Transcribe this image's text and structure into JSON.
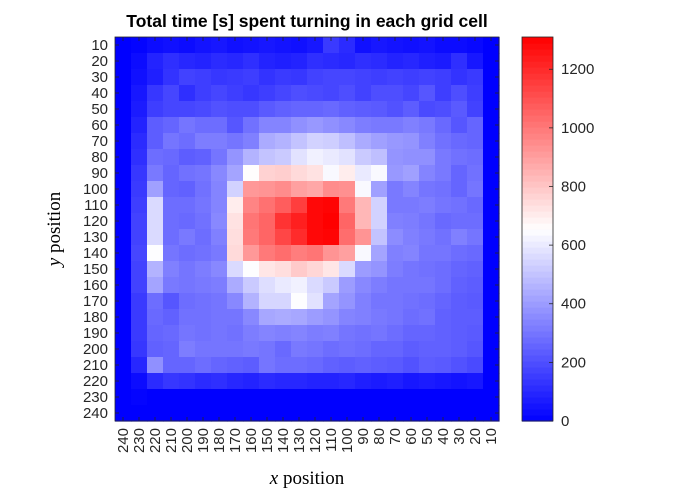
{
  "chart_data": {
    "type": "heatmap",
    "title": "Total time [s] spent turning in each grid cell",
    "xlabel_var": "x",
    "xlabel_rest": " position",
    "ylabel_var": "y",
    "ylabel_rest": " position",
    "x_ticks": [
      "240",
      "230",
      "220",
      "210",
      "200",
      "190",
      "180",
      "170",
      "160",
      "150",
      "140",
      "130",
      "120",
      "110",
      "100",
      "90",
      "80",
      "70",
      "60",
      "50",
      "40",
      "30",
      "20",
      "10"
    ],
    "y_ticks": [
      "10",
      "20",
      "30",
      "40",
      "50",
      "60",
      "70",
      "80",
      "90",
      "100",
      "110",
      "120",
      "130",
      "140",
      "150",
      "160",
      "170",
      "180",
      "190",
      "200",
      "210",
      "220",
      "230",
      "240"
    ],
    "colorbar": {
      "min": 0,
      "max": 1310,
      "ticks": [
        0,
        200,
        400,
        600,
        800,
        1000,
        1200
      ],
      "tick_labels": [
        "0",
        "200",
        "400",
        "600",
        "800",
        "1000",
        "1200"
      ],
      "colors": {
        "low": "#0000ff",
        "mid": "#ffffff",
        "high": "#ff0000"
      }
    },
    "values": [
      [
        0,
        10,
        30,
        40,
        30,
        50,
        60,
        40,
        50,
        60,
        50,
        40,
        60,
        150,
        110,
        40,
        60,
        50,
        40,
        50,
        30,
        30,
        20,
        0
      ],
      [
        0,
        30,
        90,
        120,
        100,
        90,
        110,
        100,
        120,
        90,
        80,
        90,
        120,
        110,
        100,
        120,
        110,
        90,
        100,
        80,
        70,
        120,
        60,
        0
      ],
      [
        0,
        40,
        80,
        130,
        170,
        160,
        140,
        150,
        160,
        130,
        150,
        140,
        170,
        180,
        180,
        170,
        160,
        170,
        160,
        170,
        160,
        130,
        150,
        0
      ],
      [
        0,
        60,
        140,
        180,
        120,
        160,
        180,
        160,
        140,
        160,
        180,
        200,
        190,
        180,
        200,
        170,
        200,
        200,
        180,
        220,
        160,
        200,
        160,
        0
      ],
      [
        0,
        70,
        160,
        180,
        180,
        190,
        210,
        200,
        200,
        230,
        250,
        260,
        260,
        270,
        250,
        240,
        230,
        210,
        240,
        190,
        200,
        230,
        170,
        0
      ],
      [
        0,
        90,
        240,
        260,
        300,
        280,
        280,
        220,
        290,
        340,
        340,
        370,
        390,
        370,
        350,
        320,
        310,
        310,
        330,
        310,
        270,
        220,
        260,
        0
      ],
      [
        0,
        110,
        240,
        300,
        280,
        320,
        320,
        300,
        330,
        440,
        460,
        500,
        540,
        530,
        490,
        440,
        410,
        390,
        380,
        330,
        290,
        270,
        260,
        0
      ],
      [
        0,
        120,
        280,
        270,
        240,
        250,
        300,
        380,
        460,
        500,
        520,
        580,
        620,
        600,
        580,
        520,
        490,
        380,
        370,
        370,
        310,
        290,
        280,
        0
      ],
      [
        0,
        140,
        310,
        260,
        290,
        300,
        350,
        420,
        660,
        770,
        780,
        750,
        730,
        640,
        700,
        600,
        640,
        390,
        410,
        340,
        310,
        260,
        290,
        0
      ],
      [
        0,
        150,
        410,
        260,
        250,
        290,
        340,
        540,
        920,
        930,
        950,
        900,
        880,
        950,
        940,
        640,
        410,
        310,
        340,
        300,
        290,
        260,
        300,
        0
      ],
      [
        0,
        160,
        560,
        280,
        280,
        300,
        340,
        700,
        970,
        1020,
        1070,
        1150,
        1290,
        1300,
        1000,
        840,
        540,
        310,
        310,
        320,
        300,
        290,
        270,
        0
      ],
      [
        0,
        170,
        560,
        280,
        270,
        290,
        350,
        730,
        1010,
        1050,
        1180,
        1230,
        1290,
        1310,
        1050,
        840,
        540,
        330,
        320,
        300,
        270,
        280,
        280,
        0
      ],
      [
        0,
        170,
        560,
        280,
        310,
        280,
        330,
        740,
        1000,
        1050,
        1130,
        1200,
        1290,
        1300,
        1030,
        930,
        500,
        360,
        330,
        310,
        290,
        330,
        300,
        0
      ],
      [
        0,
        180,
        650,
        300,
        280,
        290,
        310,
        750,
        920,
        1000,
        1030,
        990,
        1010,
        930,
        900,
        640,
        420,
        330,
        340,
        300,
        300,
        280,
        270,
        0
      ],
      [
        0,
        170,
        460,
        330,
        300,
        320,
        350,
        560,
        650,
        720,
        740,
        790,
        760,
        720,
        560,
        400,
        380,
        320,
        300,
        290,
        280,
        260,
        250,
        0
      ],
      [
        0,
        170,
        420,
        310,
        300,
        310,
        320,
        440,
        520,
        570,
        600,
        620,
        560,
        520,
        400,
        350,
        320,
        300,
        300,
        300,
        280,
        250,
        240,
        0
      ],
      [
        0,
        150,
        280,
        220,
        280,
        290,
        300,
        350,
        460,
        550,
        550,
        650,
        580,
        420,
        380,
        330,
        300,
        300,
        290,
        280,
        260,
        240,
        230,
        0
      ],
      [
        0,
        150,
        270,
        250,
        290,
        290,
        300,
        300,
        350,
        430,
        440,
        430,
        400,
        380,
        340,
        330,
        310,
        300,
        280,
        290,
        250,
        240,
        240,
        0
      ],
      [
        0,
        150,
        260,
        270,
        300,
        290,
        300,
        290,
        320,
        340,
        330,
        340,
        320,
        330,
        300,
        290,
        300,
        280,
        260,
        260,
        250,
        240,
        230,
        0
      ],
      [
        0,
        140,
        250,
        260,
        320,
        300,
        300,
        300,
        310,
        300,
        270,
        310,
        300,
        280,
        290,
        280,
        260,
        260,
        240,
        250,
        250,
        240,
        220,
        0
      ],
      [
        0,
        100,
        370,
        260,
        260,
        280,
        260,
        250,
        240,
        300,
        280,
        280,
        270,
        250,
        240,
        250,
        240,
        230,
        210,
        240,
        230,
        210,
        190,
        0
      ],
      [
        0,
        30,
        110,
        140,
        130,
        110,
        120,
        100,
        90,
        110,
        100,
        100,
        90,
        90,
        100,
        80,
        70,
        80,
        60,
        70,
        60,
        50,
        60,
        0
      ],
      [
        0,
        10,
        0,
        0,
        0,
        0,
        0,
        0,
        0,
        0,
        0,
        0,
        0,
        0,
        0,
        0,
        0,
        0,
        0,
        0,
        0,
        0,
        0,
        0
      ],
      [
        0,
        0,
        0,
        0,
        0,
        0,
        0,
        0,
        0,
        0,
        0,
        0,
        0,
        0,
        0,
        0,
        0,
        0,
        0,
        0,
        0,
        0,
        0,
        0
      ]
    ]
  }
}
